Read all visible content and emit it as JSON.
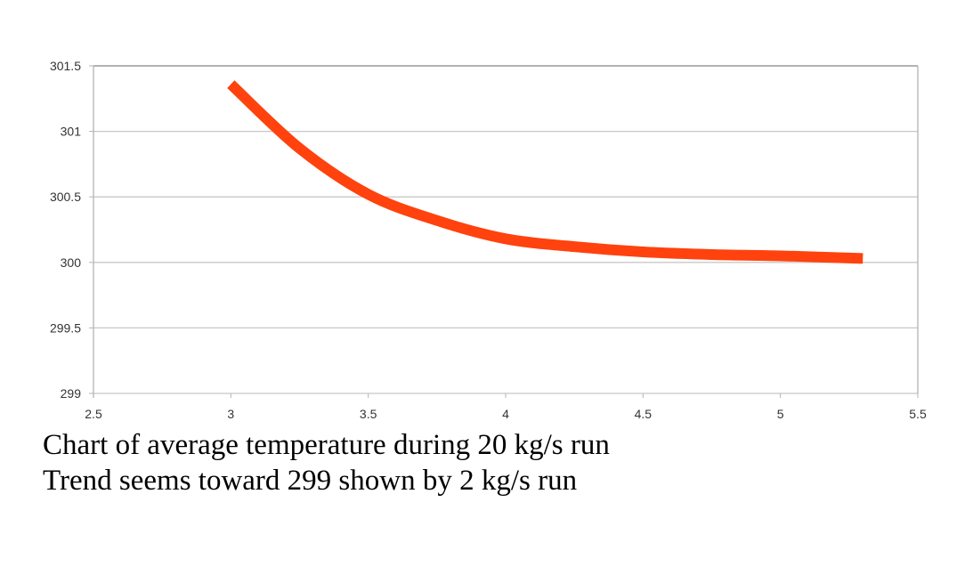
{
  "chart_data": {
    "type": "line",
    "title": "",
    "xlabel": "",
    "ylabel": "",
    "xlim": [
      2.5,
      5.5
    ],
    "ylim": [
      299,
      301.5
    ],
    "xticks": [
      "2.5",
      "3",
      "3.5",
      "4",
      "4.5",
      "5",
      "5.5"
    ],
    "yticks": [
      "299",
      "299.5",
      "300",
      "300.5",
      "301",
      "301.5"
    ],
    "grid": "horizontal",
    "legend": "none",
    "color": "#ff420e",
    "x": [
      3.0,
      3.25,
      3.5,
      3.75,
      4.0,
      4.25,
      4.5,
      4.75,
      5.0,
      5.3
    ],
    "y": [
      301.36,
      300.87,
      300.52,
      300.32,
      300.18,
      300.12,
      300.08,
      300.06,
      300.05,
      300.03
    ]
  },
  "captions": [
    "Chart of average temperature during 20 kg/s run",
    "Trend seems toward 299 shown by 2 kg/s run"
  ]
}
